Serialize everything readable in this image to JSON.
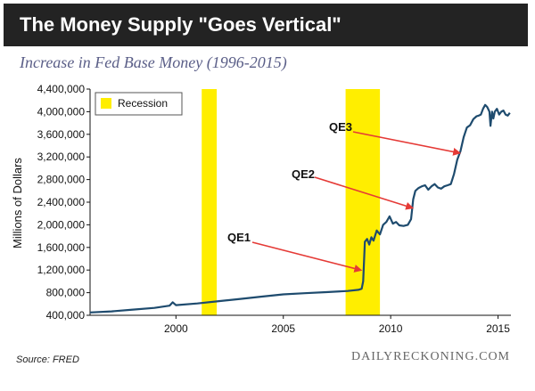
{
  "header": {
    "title": "The Money Supply \"Goes Vertical\"",
    "subtitle": "Increase in Fed Base Money (1996-2015)"
  },
  "footer": {
    "source": "Source: FRED",
    "brand": "DAILYRECKONING.COM"
  },
  "colors": {
    "line": "#1e4b6e",
    "recession": "#ffee00",
    "arrow": "#e53a36",
    "background": "#f0f0f0",
    "title_bar": "#232323",
    "subtitle": "#5b5f88"
  },
  "chart_data": {
    "type": "line",
    "title": "Increase in Fed Base Money (1996-2015)",
    "xlabel": "",
    "ylabel": "Millions of Dollars",
    "xlim": [
      1996,
      2015.6
    ],
    "ylim": [
      400000,
      4400000
    ],
    "x_ticks": [
      2000,
      2005,
      2010,
      2015
    ],
    "y_ticks": [
      400000,
      800000,
      1200000,
      1600000,
      2000000,
      2400000,
      2800000,
      3200000,
      3600000,
      4000000,
      4400000
    ],
    "y_tick_labels": [
      "400,000",
      "800,000",
      "1,200,000",
      "1,600,000",
      "2,000,000",
      "2,400,000",
      "2,800,000",
      "3,200,000",
      "3,600,000",
      "4,000,000",
      "4,400,000"
    ],
    "grid": false,
    "legend": {
      "position": "top-left",
      "entries": [
        "Recession"
      ]
    },
    "recessions": [
      {
        "name": "Recession",
        "start": 2001.2,
        "end": 2001.9
      },
      {
        "name": "Recession",
        "start": 2007.9,
        "end": 2009.5
      }
    ],
    "series": [
      {
        "x": [
          1996.0,
          1997.0,
          1998.0,
          1999.0,
          1999.7,
          1999.85,
          2000.0,
          2001.0,
          2002.0,
          2003.0,
          2004.0,
          2005.0,
          2006.0,
          2007.0,
          2008.0,
          2008.5,
          2008.65,
          2008.72,
          2008.8,
          2008.9,
          2009.0,
          2009.1,
          2009.2,
          2009.35,
          2009.5,
          2009.65,
          2009.8,
          2009.95,
          2010.1,
          2010.25,
          2010.4,
          2010.6,
          2010.8,
          2010.95,
          2011.05,
          2011.15,
          2011.3,
          2011.45,
          2011.6,
          2011.75,
          2011.9,
          2012.05,
          2012.2,
          2012.35,
          2012.5,
          2012.65,
          2012.8,
          2012.95,
          2013.1,
          2013.25,
          2013.4,
          2013.55,
          2013.7,
          2013.85,
          2014.0,
          2014.1,
          2014.2,
          2014.3,
          2014.4,
          2014.5,
          2014.6,
          2014.65,
          2014.72,
          2014.78,
          2014.85,
          2014.95,
          2015.05,
          2015.15,
          2015.25,
          2015.35,
          2015.45,
          2015.55
        ],
        "values": [
          450000,
          470000,
          500000,
          530000,
          570000,
          630000,
          580000,
          610000,
          650000,
          690000,
          730000,
          770000,
          790000,
          810000,
          830000,
          850000,
          870000,
          1000000,
          1700000,
          1750000,
          1650000,
          1780000,
          1720000,
          1900000,
          1830000,
          2000000,
          2050000,
          2150000,
          2020000,
          2050000,
          1990000,
          1980000,
          2000000,
          2100000,
          2450000,
          2600000,
          2650000,
          2680000,
          2700000,
          2620000,
          2680000,
          2720000,
          2660000,
          2640000,
          2680000,
          2700000,
          2720000,
          2900000,
          3150000,
          3300000,
          3550000,
          3720000,
          3760000,
          3870000,
          3920000,
          3930000,
          3950000,
          4050000,
          4120000,
          4080000,
          4000000,
          3750000,
          4000000,
          3880000,
          4000000,
          4050000,
          3950000,
          4000000,
          4020000,
          3950000,
          3930000,
          3980000
        ]
      }
    ],
    "annotations": [
      {
        "text": "QE1",
        "target_x": 2008.6,
        "target_y": 1200000
      },
      {
        "text": "QE2",
        "target_x": 2011.0,
        "target_y": 2300000
      },
      {
        "text": "QE3",
        "target_x": 2013.2,
        "target_y": 3270000
      }
    ]
  }
}
